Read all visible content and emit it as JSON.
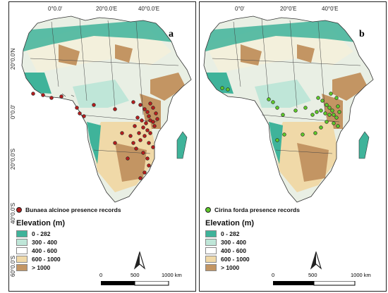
{
  "panels": [
    {
      "letter": "a",
      "records_label": "Bunaea alcinoe presence records",
      "record_color": "#b41e1e",
      "top_ticks": [
        "0°0.0'",
        "20°0.0'E",
        "40°0.0'E"
      ],
      "left_ticks": [
        "20°0.0'N",
        "0°0.0'",
        "20°0.0'S",
        "40°0.0'S",
        "60°0.0'S"
      ]
    },
    {
      "letter": "b",
      "records_label": "Cirina forda presence records",
      "record_color": "#5ec82a",
      "top_ticks": [
        "0°0'",
        "20°0'E",
        "40°0'E"
      ],
      "left_ticks": []
    }
  ],
  "legend": {
    "title": "Elevation (m)",
    "classes": [
      {
        "label": "0 - 282",
        "color": "#3fb39a"
      },
      {
        "label": "300 - 400",
        "color": "#bfe6d8"
      },
      {
        "label": "400 - 600",
        "color": "#ffffff"
      },
      {
        "label": "600 - 1000",
        "color": "#f0d9a8"
      },
      {
        "label": "> 1000",
        "color": "#c39563"
      }
    ]
  },
  "scale": {
    "labels": [
      "0",
      "500",
      "1000 km"
    ]
  },
  "north_icon": "north-arrow-icon"
}
